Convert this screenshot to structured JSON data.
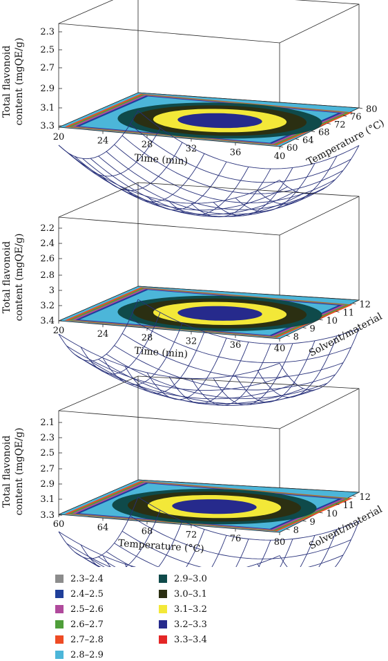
{
  "chart_data": [
    {
      "type": "surface",
      "x_label": "Time (min)",
      "x_ticks": [
        "20",
        "24",
        "28",
        "32",
        "36",
        "40"
      ],
      "x_range": [
        20,
        40
      ],
      "y_label": "Temperature (°C)",
      "y_ticks": [
        "60",
        "64",
        "68",
        "72",
        "76",
        "80"
      ],
      "y_range": [
        60,
        80
      ],
      "z_label": [
        "Total flavonoid",
        "content (mgQE/g)"
      ],
      "z_ticks": [
        "2.3",
        "2.5",
        "2.7",
        "2.9",
        "3.1",
        "3.3"
      ],
      "z_range": [
        2.3,
        3.3
      ],
      "surface": {
        "peak": 3.29,
        "x_opt": 31,
        "y_opt": 70,
        "edge_drop": [
          1.65,
          0.3
        ]
      },
      "contour_levels": [
        2.3,
        2.4,
        2.5,
        2.6,
        2.7,
        2.8,
        2.9,
        3.0,
        3.1,
        3.2,
        3.3,
        3.4
      ],
      "contour_ring": [
        0.42,
        0.6,
        0.78,
        0.92
      ]
    },
    {
      "type": "surface",
      "x_label": "Time (min)",
      "x_ticks": [
        "20",
        "24",
        "28",
        "32",
        "36",
        "40"
      ],
      "x_range": [
        20,
        40
      ],
      "y_label": "Solvent/material",
      "y_ticks": [
        "8",
        "9",
        "10",
        "11",
        "12"
      ],
      "y_range": [
        7.6,
        12.4
      ],
      "z_label": [
        "Total flavonoid",
        "content (mgQE/g)"
      ],
      "z_ticks": [
        "2.2",
        "2.4",
        "2.6",
        "2.8",
        "3",
        "3.2",
        "3.4"
      ],
      "z_range": [
        2.2,
        3.4
      ],
      "surface": {
        "peak": 3.36,
        "x_opt": 31,
        "y_opt": 10,
        "edge_drop": [
          1.45,
          0.55
        ]
      },
      "contour_levels": [
        2.3,
        2.4,
        2.5,
        2.6,
        2.7,
        2.8,
        2.9,
        3.0,
        3.1,
        3.2,
        3.3,
        3.4
      ],
      "contour_ring": [
        0.42,
        0.6,
        0.78,
        0.92
      ]
    },
    {
      "type": "surface",
      "x_label": "Temperature (°C)",
      "x_ticks": [
        "60",
        "64",
        "68",
        "72",
        "76",
        "80"
      ],
      "x_range": [
        60,
        80
      ],
      "y_label": "Solvent/material",
      "y_ticks": [
        "8",
        "9",
        "10",
        "11",
        "12"
      ],
      "y_range": [
        7.6,
        12.4
      ],
      "z_label": [
        "Total flavonoid",
        "content (mgQE/g)"
      ],
      "z_ticks": [
        "2.1",
        "2.3",
        "2.5",
        "2.7",
        "2.9",
        "3.1",
        "3.3"
      ],
      "z_range": [
        2.1,
        3.3
      ],
      "surface": {
        "peak": 3.3,
        "x_opt": 70.5,
        "y_opt": 10,
        "edge_drop": [
          1.55,
          0.55
        ]
      },
      "contour_levels": [
        2.3,
        2.4,
        2.5,
        2.6,
        2.7,
        2.8,
        2.9,
        3.0,
        3.1,
        3.2,
        3.3,
        3.4
      ],
      "contour_ring": [
        0.42,
        0.6,
        0.78,
        0.92
      ]
    }
  ],
  "legend": [
    {
      "label": "2.3–2.4",
      "color": "#8c8c8c"
    },
    {
      "label": "2.4–2.5",
      "color": "#1f3f9a"
    },
    {
      "label": "2.5–2.6",
      "color": "#b04a9c"
    },
    {
      "label": "2.6–2.7",
      "color": "#4f9e3a"
    },
    {
      "label": "2.7–2.8",
      "color": "#ee4b24"
    },
    {
      "label": "2.8–2.9",
      "color": "#4cb6d9"
    },
    {
      "label": "2.9–3.0",
      "color": "#0f4a4a"
    },
    {
      "label": "3.0–3.1",
      "color": "#2b2f12"
    },
    {
      "label": "3.1–3.2",
      "color": "#f3e838"
    },
    {
      "label": "3.2–3.3",
      "color": "#262a8c"
    },
    {
      "label": "3.3–3.4",
      "color": "#e42626"
    }
  ],
  "colors": {
    "mesh": "#27307a",
    "box": "#222222"
  }
}
